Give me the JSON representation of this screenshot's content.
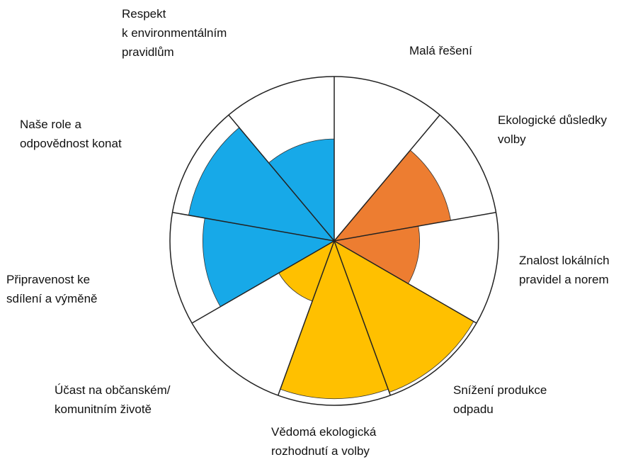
{
  "chart_data": {
    "type": "polar-area",
    "categories": [
      "Malá řešení",
      "Ekologické důsledky\nvolby",
      "Znalost lokálních\npravidel a norem",
      "Snížení produkce\nodpadu",
      "Vědomá ekologická\nrozhodnutí a volby",
      "Účast na občanském/\nkomunitním životě",
      "Připravenost ke\nsdílení a výměně",
      "Naše role a\nodpovědnost konat",
      "Respekt\nk environmentálním\npravidlům"
    ],
    "values": [
      0,
      72,
      52,
      98,
      96,
      39,
      80,
      90,
      62
    ],
    "colors": [
      "#ffffff",
      "#ed7d31",
      "#ed7d31",
      "#ffc000",
      "#ffc000",
      "#ffc000",
      "#17a9e8",
      "#17a9e8",
      "#17a9e8"
    ],
    "rlim": [
      0,
      100
    ]
  }
}
